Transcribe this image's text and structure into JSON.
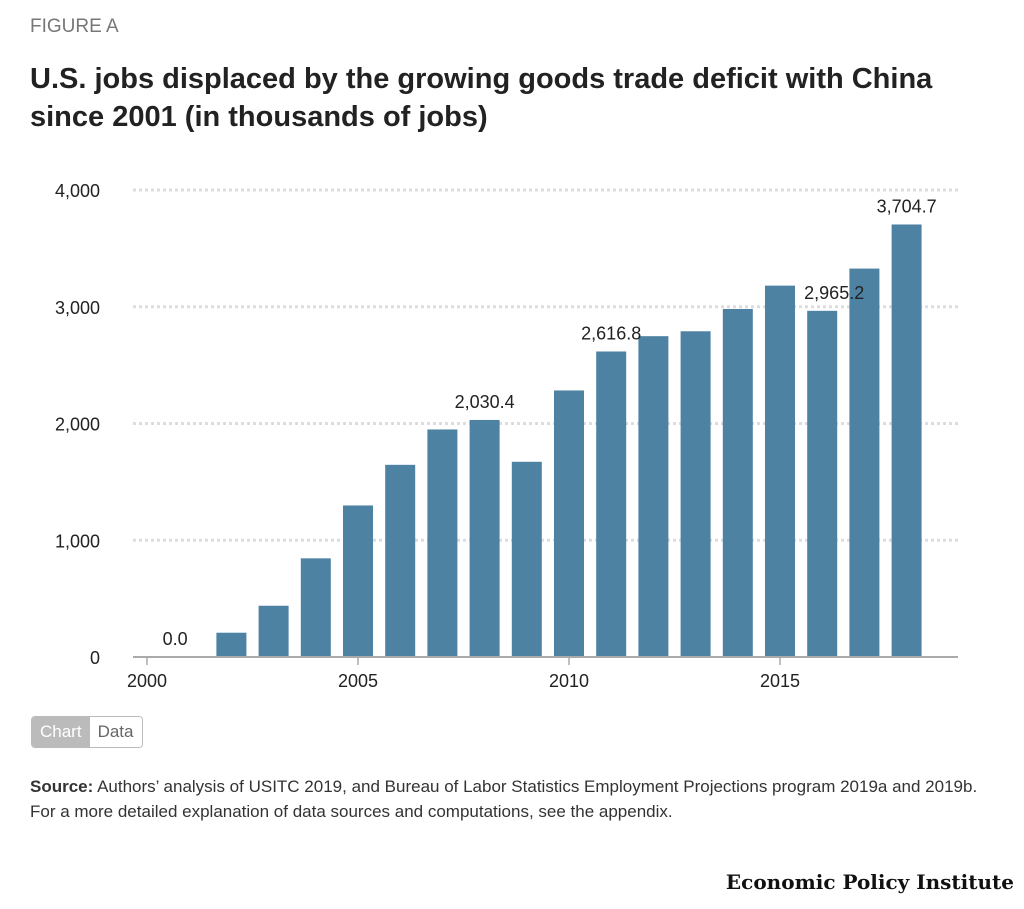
{
  "figure_label": "FIGURE A",
  "toggle": {
    "chart": "Chart",
    "data": "Data"
  },
  "source_label": "Source:",
  "source_text": " Authors’ analysis of USITC 2019, and Bureau of Labor Statistics Employment Projections program 2019a and 2019b. For a more detailed explanation of data sources and computations, see the appendix.",
  "logo": "Economic Policy Institute",
  "colors": {
    "bar": "#4e82a3",
    "grid": "#dddddd"
  },
  "chart_data": {
    "type": "bar",
    "title": "U.S. jobs displaced by the growing goods trade deficit with China since 2001 (in thousands of jobs)",
    "xlabel": "",
    "ylabel": "",
    "x": [
      2001,
      2002,
      2003,
      2004,
      2005,
      2006,
      2007,
      2008,
      2009,
      2010,
      2011,
      2012,
      2013,
      2014,
      2015,
      2016,
      2017,
      2018
    ],
    "values": [
      0.0,
      208,
      439,
      845,
      1298,
      1646,
      1949,
      2030.4,
      1672,
      2283,
      2616.8,
      2748,
      2790,
      2981,
      3181,
      2965.2,
      3327,
      3704.7
    ],
    "data_labels": {
      "2001": "0.0",
      "2008": "2,030.4",
      "2011": "2,616.8",
      "2016": "2,965.2",
      "2018": "3,704.7"
    },
    "xlim": [
      2000,
      2019.2
    ],
    "ylim": [
      0,
      4000
    ],
    "yticks": [
      0,
      1000,
      2000,
      3000,
      4000
    ],
    "ytick_labels": [
      "0",
      "1,000",
      "2,000",
      "3,000",
      "4,000"
    ],
    "xticks": [
      2000,
      2005,
      2010,
      2015
    ],
    "xtick_labels": [
      "2000",
      "2005",
      "2010",
      "2015"
    ],
    "grid": true
  }
}
